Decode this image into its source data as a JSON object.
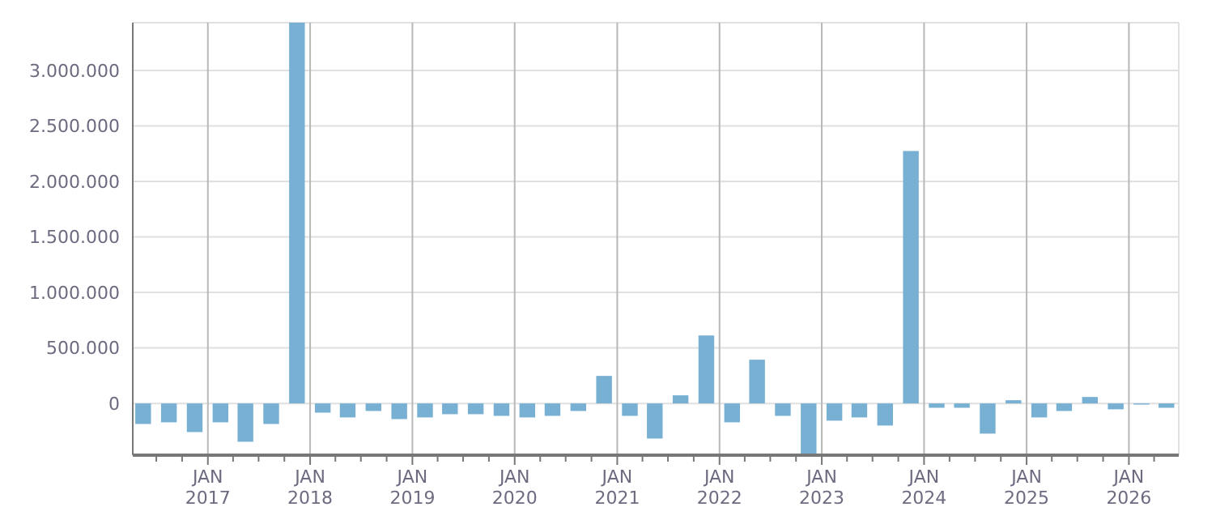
{
  "chart_data": {
    "type": "bar",
    "color": "#78b0d3",
    "grid": true,
    "x": [
      "2016-05-15",
      "2016-08-15",
      "2016-11-15",
      "2017-02-15",
      "2017-05-15",
      "2017-08-15",
      "2017-11-15",
      "2018-02-15",
      "2018-05-15",
      "2018-08-15",
      "2018-11-15",
      "2019-02-15",
      "2019-05-15",
      "2019-08-15",
      "2019-11-15",
      "2020-02-15",
      "2020-05-15",
      "2020-08-15",
      "2020-11-15",
      "2021-02-15",
      "2021-05-15",
      "2021-08-15",
      "2021-11-15",
      "2022-02-15",
      "2022-05-15",
      "2022-08-15",
      "2022-11-15",
      "2023-02-15",
      "2023-05-15",
      "2023-08-15",
      "2023-11-15",
      "2024-02-15",
      "2024-05-15",
      "2024-08-15",
      "2024-11-15",
      "2025-02-15",
      "2025-05-15",
      "2025-08-15",
      "2025-11-15",
      "2026-02-15",
      "2026-05-15"
    ],
    "values": [
      -185000,
      -170000,
      -258000,
      -170000,
      -345000,
      -185000,
      3430000,
      -83000,
      -126000,
      -68000,
      -141000,
      -126000,
      -97000,
      -97000,
      -112000,
      -126000,
      -112000,
      -68000,
      248000,
      -112000,
      -316000,
      73000,
      612000,
      -170000,
      394000,
      -112000,
      -460000,
      -155000,
      -126000,
      -199000,
      2274000,
      -39000,
      -39000,
      -272000,
      29000,
      -126000,
      -68000,
      58000,
      -53000,
      -10000,
      -39000
    ],
    "xlim": [
      "2016-04-08",
      "2026-06-28"
    ],
    "xticks": [
      {
        "value": "2016-07-01",
        "label": null
      },
      {
        "value": "2016-10-01",
        "label": null
      },
      {
        "value": "2017-01-01",
        "label": "JAN\n2017"
      },
      {
        "value": "2017-04-01",
        "label": null
      },
      {
        "value": "2017-07-01",
        "label": null
      },
      {
        "value": "2017-10-01",
        "label": null
      },
      {
        "value": "2018-01-01",
        "label": "JAN\n2018"
      },
      {
        "value": "2018-04-01",
        "label": null
      },
      {
        "value": "2018-07-01",
        "label": null
      },
      {
        "value": "2018-10-01",
        "label": null
      },
      {
        "value": "2019-01-01",
        "label": "JAN\n2019"
      },
      {
        "value": "2019-04-01",
        "label": null
      },
      {
        "value": "2019-07-01",
        "label": null
      },
      {
        "value": "2019-10-01",
        "label": null
      },
      {
        "value": "2020-01-01",
        "label": "JAN\n2020"
      },
      {
        "value": "2020-04-01",
        "label": null
      },
      {
        "value": "2020-07-01",
        "label": null
      },
      {
        "value": "2020-10-01",
        "label": null
      },
      {
        "value": "2021-01-01",
        "label": "JAN\n2021"
      },
      {
        "value": "2021-04-01",
        "label": null
      },
      {
        "value": "2021-07-01",
        "label": null
      },
      {
        "value": "2021-10-01",
        "label": null
      },
      {
        "value": "2022-01-01",
        "label": "JAN\n2022"
      },
      {
        "value": "2022-04-01",
        "label": null
      },
      {
        "value": "2022-07-01",
        "label": null
      },
      {
        "value": "2022-10-01",
        "label": null
      },
      {
        "value": "2023-01-01",
        "label": "JAN\n2023"
      },
      {
        "value": "2023-04-01",
        "label": null
      },
      {
        "value": "2023-07-01",
        "label": null
      },
      {
        "value": "2023-10-01",
        "label": null
      },
      {
        "value": "2024-01-01",
        "label": "JAN\n2024"
      },
      {
        "value": "2024-04-01",
        "label": null
      },
      {
        "value": "2024-07-01",
        "label": null
      },
      {
        "value": "2024-10-01",
        "label": null
      },
      {
        "value": "2025-01-01",
        "label": "JAN\n2025"
      },
      {
        "value": "2025-04-01",
        "label": null
      },
      {
        "value": "2025-07-01",
        "label": null
      },
      {
        "value": "2025-10-01",
        "label": null
      },
      {
        "value": "2026-01-01",
        "label": "JAN\n2026"
      },
      {
        "value": "2026-04-01",
        "label": null
      }
    ],
    "ylim": [
      -466000,
      3430000
    ],
    "yticks": [
      {
        "value": 0,
        "label": "0"
      },
      {
        "value": 500000,
        "label": "500.000"
      },
      {
        "value": 1000000,
        "label": "1.000.000"
      },
      {
        "value": 1500000,
        "label": "1.500.000"
      },
      {
        "value": 2000000,
        "label": "2.000.000"
      },
      {
        "value": 2500000,
        "label": "2.500.000"
      },
      {
        "value": 3000000,
        "label": "3.000.000"
      }
    ]
  }
}
